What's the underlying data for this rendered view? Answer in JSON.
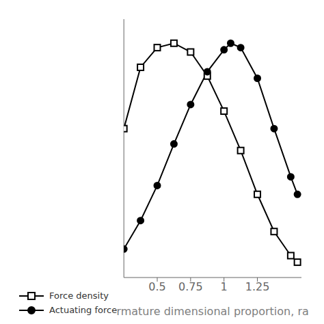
{
  "chart_data": {
    "type": "line",
    "x_label": "rmature dimensional proportion,  ra",
    "xlim": [
      0.25,
      1.58
    ],
    "xticks": [
      0.5,
      0.75,
      {
        "value": 1.0,
        "label": "1"
      },
      1.25
    ],
    "ylim": [
      -0.08,
      1.1
    ],
    "yticks": [],
    "tick_labels": "x",
    "legend": "lower left",
    "series": [
      {
        "name": "Force density",
        "color": "#000000",
        "marker": "square",
        "x": [
          0.25,
          0.375,
          0.5,
          0.625,
          0.75,
          0.875,
          1.0,
          1.125,
          1.25,
          1.375,
          1.5,
          1.55
        ],
        "values": [
          0.6,
          0.88,
          0.97,
          0.99,
          0.95,
          0.84,
          0.68,
          0.5,
          0.3,
          0.13,
          0.02,
          -0.01
        ]
      },
      {
        "name": "Actuating force",
        "color": "#000000",
        "marker": "circle",
        "x": [
          0.25,
          0.375,
          0.5,
          0.625,
          0.75,
          0.875,
          1.0,
          1.05,
          1.125,
          1.25,
          1.375,
          1.5,
          1.55
        ],
        "values": [
          0.05,
          0.18,
          0.34,
          0.53,
          0.71,
          0.86,
          0.96,
          0.99,
          0.97,
          0.83,
          0.6,
          0.38,
          0.3
        ]
      }
    ]
  }
}
